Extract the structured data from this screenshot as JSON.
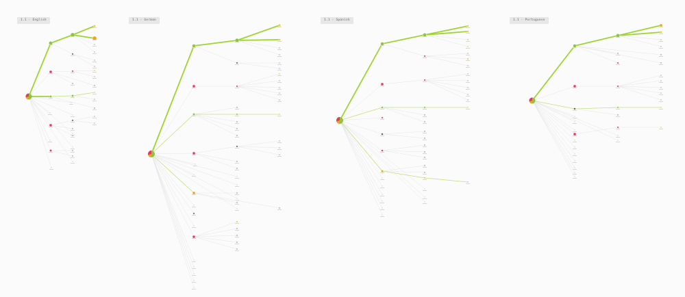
{
  "panels": [
    {
      "label": "1.1 - English"
    },
    {
      "label": "1.1 - German"
    },
    {
      "label": "1.1 - Spanish"
    },
    {
      "label": "1.1 - Portuguese"
    }
  ],
  "colors": {
    "strong": "#9ed531",
    "medium": "#c3e27a",
    "weak": "#e3e3e3",
    "node_green": "#8cc63f",
    "node_red": "#e53a5a",
    "node_orange": "#f3a21e",
    "node_yellow": "#ecd22a",
    "node_gray": "#b8b8b8",
    "node_dark": "#5f5f5f"
  }
}
